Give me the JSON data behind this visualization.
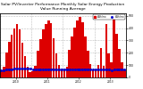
{
  "title": "Solar PV/Inverter Performance Monthly Solar Energy Production Value Running Average",
  "title_fontsize": 3.2,
  "bar_color": "#dd0000",
  "avg_color": "#0000cc",
  "bg_color": "#ffffff",
  "grid_color": "#bbbbbb",
  "ylim": [
    0,
    520
  ],
  "yticks": [
    0,
    100,
    200,
    300,
    400,
    500
  ],
  "legend_labels": [
    "kWh/mo",
    "kWh/mo"
  ],
  "year_labels": [
    "2010",
    "2011",
    "2012",
    "2013"
  ],
  "values": [
    60,
    90,
    200,
    290,
    350,
    400,
    430,
    390,
    280,
    170,
    85,
    45,
    50,
    95,
    215,
    310,
    390,
    430,
    465,
    440,
    315,
    195,
    100,
    55,
    60,
    85,
    225,
    330,
    405,
    465,
    490,
    450,
    335,
    215,
    110,
    60,
    65,
    100,
    235,
    95,
    430,
    195,
    125,
    470,
    355,
    230,
    120,
    68
  ],
  "running_avg": [
    55,
    58,
    62,
    65,
    68,
    70,
    73,
    75,
    75,
    74,
    72,
    70,
    68,
    66,
    65,
    65,
    65,
    66,
    67,
    68,
    68,
    68,
    67,
    66,
    65,
    64,
    63,
    63,
    64,
    65,
    66,
    67,
    67,
    67,
    66,
    65,
    64,
    63,
    63,
    62,
    62,
    62,
    61,
    62,
    62,
    63,
    63,
    63
  ]
}
